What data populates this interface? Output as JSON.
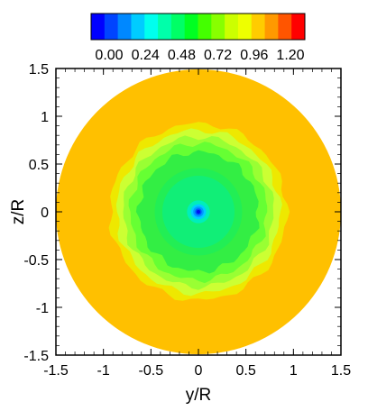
{
  "chart_data": {
    "type": "heatmap",
    "title": "",
    "xlabel": "y/R",
    "ylabel": "z/R",
    "xlim": [
      -1.5,
      1.5
    ],
    "ylim": [
      -1.5,
      1.5
    ],
    "x_ticks": [
      "-1.5",
      "-1",
      "-0.5",
      "0",
      "0.5",
      "1",
      "1.5"
    ],
    "y_ticks": [
      "-1.5",
      "-1",
      "-0.5",
      "0",
      "0.5",
      "1",
      "1.5"
    ],
    "x_tick_values": [
      -1.5,
      -1,
      -0.5,
      0,
      0.5,
      1,
      1.5
    ],
    "y_tick_values": [
      -1.5,
      -1,
      -0.5,
      0,
      0.5,
      1,
      1.5
    ],
    "colorbar": {
      "min": 0.0,
      "max": 1.2,
      "tick_labels": [
        "0.00",
        "0.24",
        "0.48",
        "0.72",
        "0.96",
        "1.20"
      ],
      "tick_values": [
        0.0,
        0.24,
        0.48,
        0.72,
        0.96,
        1.2
      ],
      "colors": [
        "#0000ff",
        "#0044ff",
        "#0088ff",
        "#00ccff",
        "#00ffee",
        "#00ffaa",
        "#00ff66",
        "#00ff22",
        "#44ff00",
        "#88ff00",
        "#ccff00",
        "#eeff00",
        "#ffcc00",
        "#ff9900",
        "#ff5500",
        "#ff0000"
      ]
    },
    "field": {
      "domain": "disk",
      "radius": 1.5,
      "outer_value": 1.02,
      "rings": [
        {
          "r": 1.02,
          "value": 0.97,
          "color": "#ffc000"
        },
        {
          "r": 0.93,
          "value": 0.9,
          "color": "#eee800"
        },
        {
          "r": 0.86,
          "value": 0.82,
          "color": "#ccff33"
        },
        {
          "r": 0.79,
          "value": 0.74,
          "color": "#99ff33"
        },
        {
          "r": 0.72,
          "value": 0.66,
          "color": "#66ff33"
        },
        {
          "r": 0.63,
          "value": 0.58,
          "color": "#33ee44"
        },
        {
          "r": 0.46,
          "value": 0.54,
          "color": "#22ee55"
        },
        {
          "r": 0.38,
          "value": 0.5,
          "color": "#11ee77"
        },
        {
          "r": 0.12,
          "value": 0.38,
          "color": "#00eebb"
        },
        {
          "r": 0.08,
          "value": 0.28,
          "color": "#00ccff"
        },
        {
          "r": 0.055,
          "value": 0.18,
          "color": "#0099ff"
        },
        {
          "r": 0.035,
          "value": 0.09,
          "color": "#0055ff"
        },
        {
          "r": 0.02,
          "value": 0.02,
          "color": "#0011ee"
        }
      ],
      "outer_color": "#ffc000"
    }
  }
}
